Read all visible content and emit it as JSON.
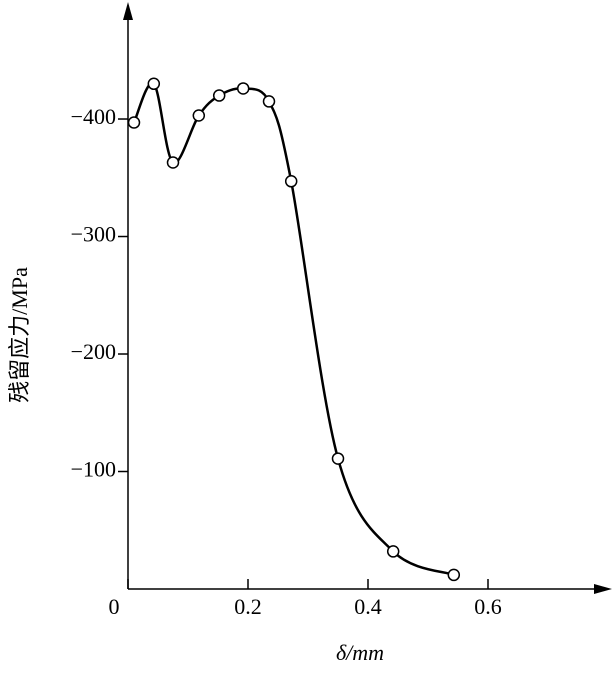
{
  "chart_data": {
    "type": "line",
    "x_label": "δ/mm",
    "y_label": "残留应力/MPa",
    "x": [
      0.01,
      0.043,
      0.075,
      0.118,
      0.152,
      0.192,
      0.235,
      0.272,
      0.35,
      0.442,
      0.543
    ],
    "series": [
      {
        "color": "#000000",
        "values": [
          -397,
          -430,
          -363,
          -403,
          -420,
          -426,
          -415,
          -347,
          -111,
          -32,
          -12
        ]
      }
    ],
    "xlim": [
      0,
      0.8
    ],
    "ylim": [
      0,
      -495
    ],
    "xticks": [
      0,
      0.2,
      0.4,
      0.6
    ],
    "yticks": [
      {
        "value": -400,
        "label": "−400"
      },
      {
        "value": -300,
        "label": "−300"
      },
      {
        "value": -200,
        "label": "−200"
      },
      {
        "value": -100,
        "label": "−100"
      }
    ],
    "grid": false
  }
}
